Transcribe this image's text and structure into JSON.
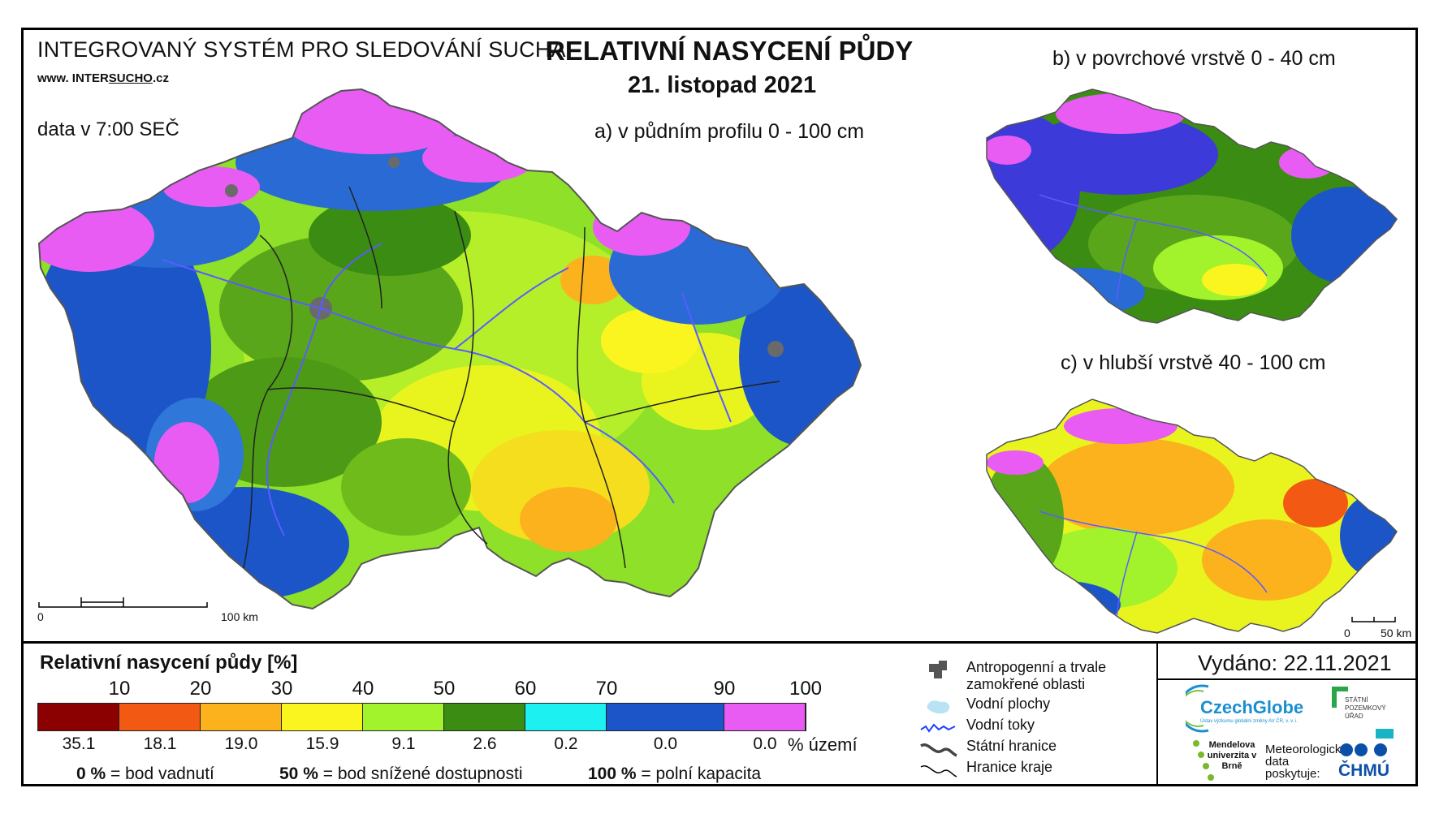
{
  "header": {
    "system_title": "INTEGROVANÝ SYSTÉM PRO SLEDOVÁNÍ SUCHA",
    "website_prefix": "www. INTER",
    "website_underlined": "SUCHO",
    "website_suffix": ".cz",
    "data_time": "data v 7:00 SEČ",
    "main_title": "RELATIVNÍ NASYCENÍ PŮDY",
    "date": "21. listopad 2021"
  },
  "maps": {
    "a": {
      "label": "a) v půdním profilu 0 - 100 cm",
      "scale_start": "0",
      "scale_end": "100 km"
    },
    "b": {
      "label": "b) v povrchové vrstvě 0 - 40 cm"
    },
    "c": {
      "label": "c) v hlubší vrstvě 40 - 100 cm",
      "scale_start": "0",
      "scale_end": "50 km"
    }
  },
  "legend": {
    "title": "Relativní nasycení půdy [%]",
    "ticks": [
      "10",
      "20",
      "30",
      "40",
      "50",
      "60",
      "70",
      "90",
      "100"
    ],
    "classes": [
      {
        "color": "#8b0000",
        "area_pct": "35.1"
      },
      {
        "color": "#f25a14",
        "area_pct": "18.1"
      },
      {
        "color": "#fbb21d",
        "area_pct": "19.0"
      },
      {
        "color": "#faf51e",
        "area_pct": "15.9"
      },
      {
        "color": "#a2f22c",
        "area_pct": "9.1"
      },
      {
        "color": "#3b8c12",
        "area_pct": "2.6"
      },
      {
        "color": "#1cf0f0",
        "area_pct": "0.2"
      },
      {
        "color": "#1b55c8",
        "area_pct": "0.0"
      },
      {
        "color": "#e85cf4",
        "area_pct": "0.0"
      }
    ],
    "unit": "% území",
    "definitions": [
      {
        "value": "0 %",
        "text": "= bod vadnutí"
      },
      {
        "value": "50 %",
        "text": "= bod snížené dostupnosti"
      },
      {
        "value": "100 %",
        "text": "= polní kapacita"
      }
    ]
  },
  "symbols": [
    {
      "icon": "anthropogenic-area-icon",
      "text": "Antropogenní a trvale zamokřené oblasti"
    },
    {
      "icon": "water-body-icon",
      "text": "Vodní plochy"
    },
    {
      "icon": "river-icon",
      "text": "Vodní toky"
    },
    {
      "icon": "state-border-icon",
      "text": "Státní hranice"
    },
    {
      "icon": "region-border-icon",
      "text": "Hranice kraje"
    }
  ],
  "footer": {
    "issued": "Vydáno: 22.11.2021",
    "czechglobe": "CzechGlobe",
    "czechglobe_sub": "Ústav výzkumu globální změny AV ČR, v. v. i.",
    "spu": "STÁTNÍ POZEMKOVÝ ÚŘAD",
    "mendel": "Mendelova univerzita v Brně",
    "meteo": "Meteorologická data poskytuje:",
    "chmu": "ČHMÚ"
  },
  "colors": {
    "magenta": "#e85cf4",
    "blue": "#1b55c8",
    "green_dark": "#3b8c12",
    "green_light": "#a2f22c",
    "yellow": "#faf51e",
    "orange": "#fbb21d",
    "river": "#5a5cff"
  }
}
